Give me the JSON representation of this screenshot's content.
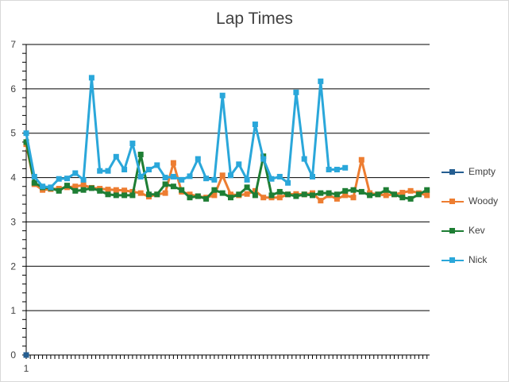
{
  "chart_data": {
    "type": "line",
    "title": "Lap Times",
    "xlabel": "",
    "ylabel": "",
    "ylim": [
      0,
      7
    ],
    "yticks": [
      0,
      1,
      2,
      3,
      4,
      5,
      6,
      7
    ],
    "x_tick_label": "1",
    "grid": "horizontal",
    "legend_position": "right",
    "series": [
      {
        "name": "Empty",
        "color": "#255e91",
        "values": [
          0
        ]
      },
      {
        "name": "Woody",
        "color": "#ed7d31",
        "values": [
          4.75,
          3.85,
          3.72,
          3.74,
          3.75,
          3.78,
          3.8,
          3.83,
          3.77,
          3.75,
          3.73,
          3.72,
          3.71,
          3.68,
          3.65,
          3.57,
          3.62,
          3.65,
          4.33,
          3.68,
          3.62,
          3.58,
          3.55,
          3.6,
          4.05,
          3.62,
          3.6,
          3.63,
          3.7,
          3.55,
          3.55,
          3.55,
          3.62,
          3.63,
          3.62,
          3.65,
          3.48,
          3.6,
          3.52,
          3.6,
          3.55,
          4.4,
          3.65,
          3.62,
          3.6,
          3.62,
          3.66,
          3.7,
          3.65,
          3.6
        ]
      },
      {
        "name": "Kev",
        "color": "#1e7e34",
        "values": [
          4.8,
          3.88,
          3.78,
          3.76,
          3.7,
          3.82,
          3.7,
          3.72,
          3.76,
          3.7,
          3.62,
          3.6,
          3.6,
          3.6,
          4.52,
          3.62,
          3.62,
          3.85,
          3.8,
          3.72,
          3.55,
          3.58,
          3.52,
          3.72,
          3.65,
          3.55,
          3.62,
          3.78,
          3.6,
          4.48,
          3.6,
          3.68,
          3.62,
          3.58,
          3.62,
          3.6,
          3.65,
          3.65,
          3.62,
          3.7,
          3.72,
          3.68,
          3.6,
          3.62,
          3.72,
          3.62,
          3.55,
          3.52,
          3.62,
          3.72
        ]
      },
      {
        "name": "Nick",
        "color": "#2aa7da",
        "values": [
          5.0,
          4.02,
          3.8,
          3.78,
          3.97,
          3.98,
          4.1,
          3.95,
          6.25,
          4.15,
          4.15,
          4.47,
          4.18,
          4.77,
          4.02,
          4.18,
          4.28,
          4.0,
          4.02,
          3.95,
          4.03,
          4.42,
          3.98,
          3.95,
          5.85,
          4.05,
          4.3,
          3.95,
          5.2,
          4.42,
          3.97,
          4.02,
          3.88,
          5.92,
          4.42,
          4.02,
          6.17,
          4.18,
          4.18,
          4.22
        ]
      }
    ]
  }
}
